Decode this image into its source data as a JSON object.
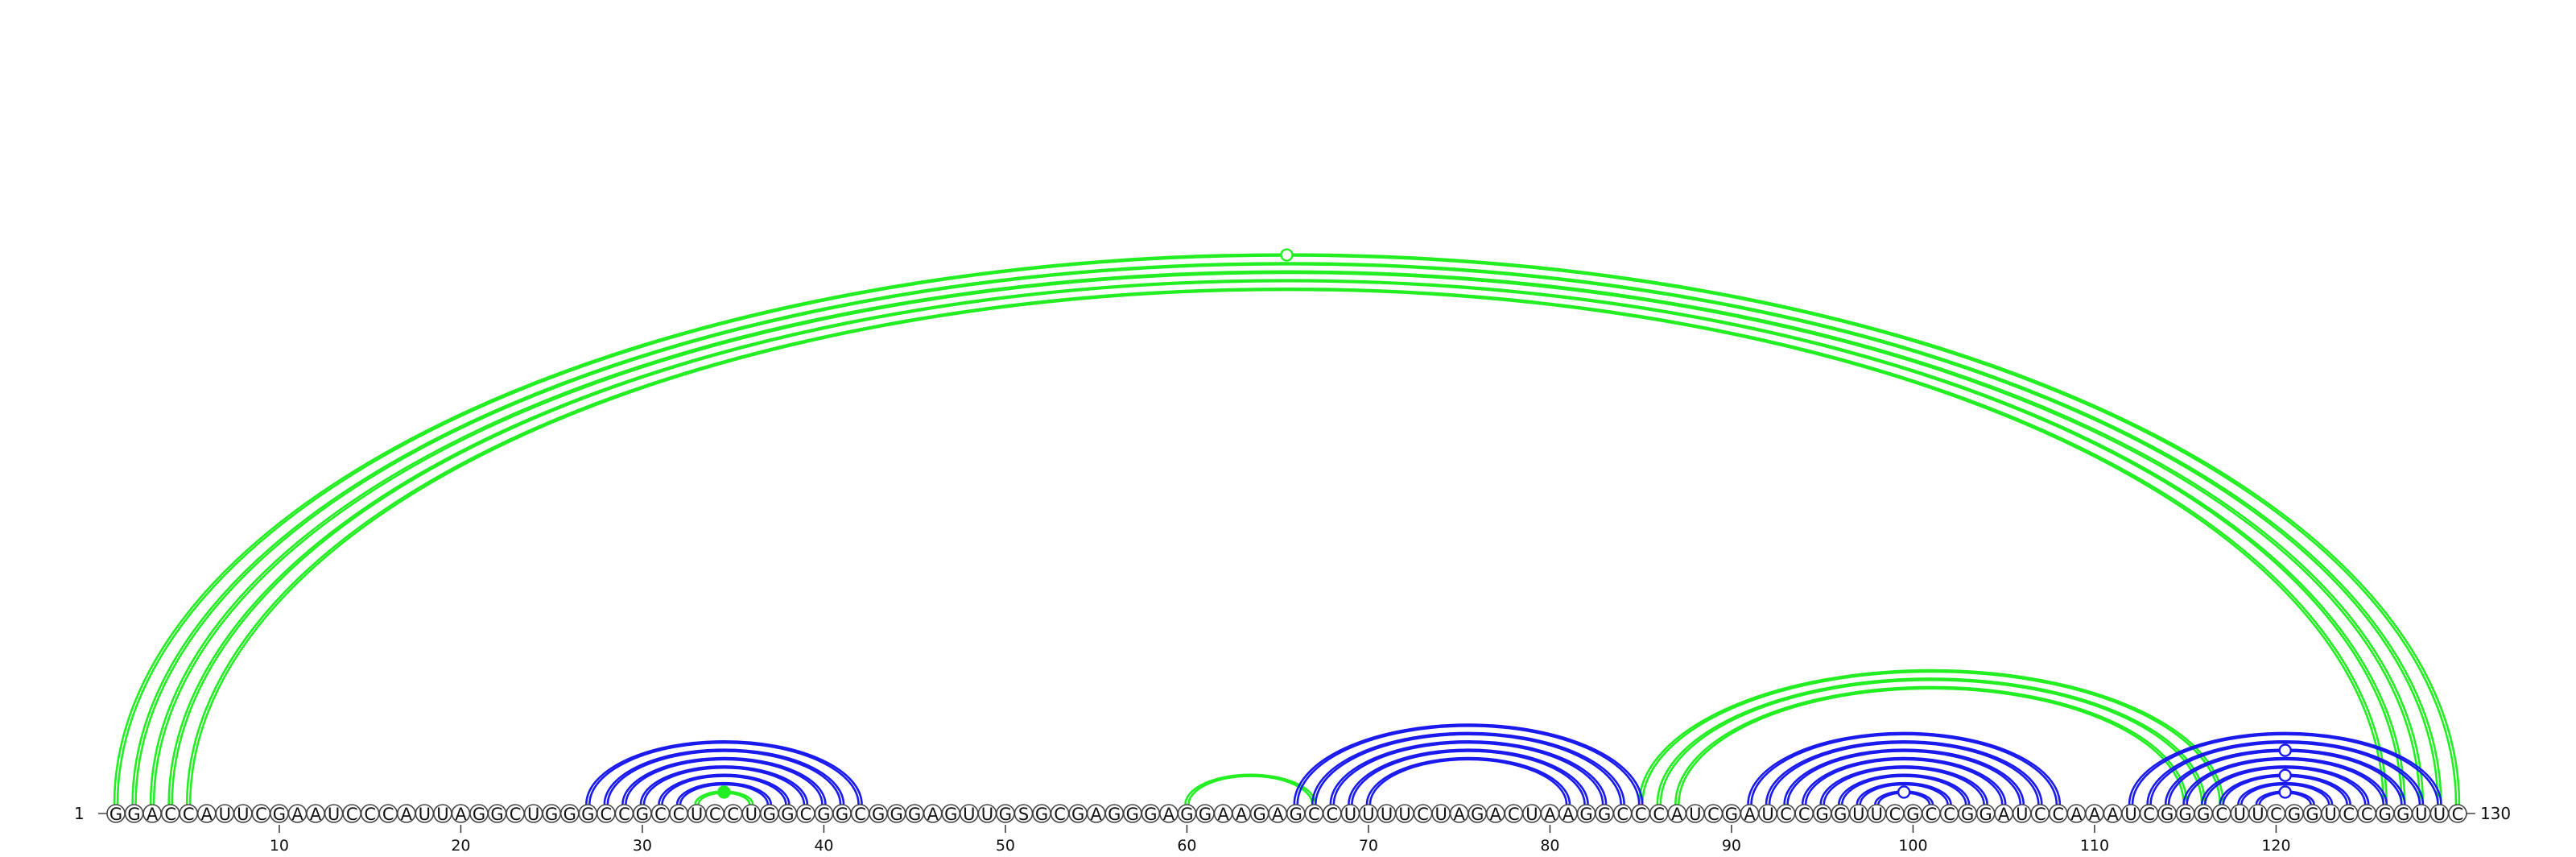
{
  "sequence": "GGACCAUUCGAAUCCCAUUAGGCUGGGCCGCCUCCUGGCGGCGGGAGUUGSGCGAGGGAGGAAGAGCCUUUUCUAGACUAAGGCCCAUCGAUCCGGUUCGCCGGAUCCAAAUCGGGCUUCGGUCCGGUUC",
  "start_label": "1",
  "end_label": "130",
  "ticks": [
    "10",
    "20",
    "30",
    "40",
    "50",
    "60",
    "70",
    "80",
    "90",
    "100",
    "110",
    "120"
  ],
  "colors": {
    "green": "#22ee22",
    "blue": "#1a1aee"
  },
  "pairs": {
    "green": [
      [
        1,
        130
      ],
      [
        2,
        129
      ],
      [
        3,
        128
      ],
      [
        4,
        127
      ],
      [
        5,
        126
      ],
      [
        33,
        36
      ],
      [
        60,
        67
      ],
      [
        85,
        117
      ],
      [
        86,
        116
      ],
      [
        87,
        115
      ]
    ],
    "blue": [
      [
        27,
        42
      ],
      [
        28,
        41
      ],
      [
        29,
        40
      ],
      [
        30,
        39
      ],
      [
        31,
        38
      ],
      [
        32,
        37
      ],
      [
        66,
        85
      ],
      [
        67,
        84
      ],
      [
        68,
        83
      ],
      [
        69,
        82
      ],
      [
        70,
        81
      ],
      [
        91,
        108
      ],
      [
        92,
        107
      ],
      [
        93,
        106
      ],
      [
        94,
        105
      ],
      [
        95,
        104
      ],
      [
        96,
        103
      ],
      [
        97,
        102
      ],
      [
        98,
        101
      ],
      [
        112,
        129
      ],
      [
        113,
        128
      ],
      [
        114,
        127
      ],
      [
        115,
        126
      ],
      [
        116,
        125
      ],
      [
        117,
        124
      ],
      [
        118,
        123
      ],
      [
        119,
        122
      ]
    ]
  },
  "markers": [
    {
      "arc": [
        1,
        130
      ],
      "filled": false,
      "color": "green"
    },
    {
      "arc": [
        33,
        36
      ],
      "filled": true,
      "color": "green"
    },
    {
      "arc": [
        98,
        101
      ],
      "filled": false,
      "color": "blue"
    },
    {
      "arc": [
        119,
        122
      ],
      "filled": false,
      "color": "blue"
    },
    {
      "arc": [
        117,
        124
      ],
      "filled": false,
      "color": "blue"
    },
    {
      "arc": [
        114,
        127
      ],
      "filled": false,
      "color": "blue"
    }
  ]
}
